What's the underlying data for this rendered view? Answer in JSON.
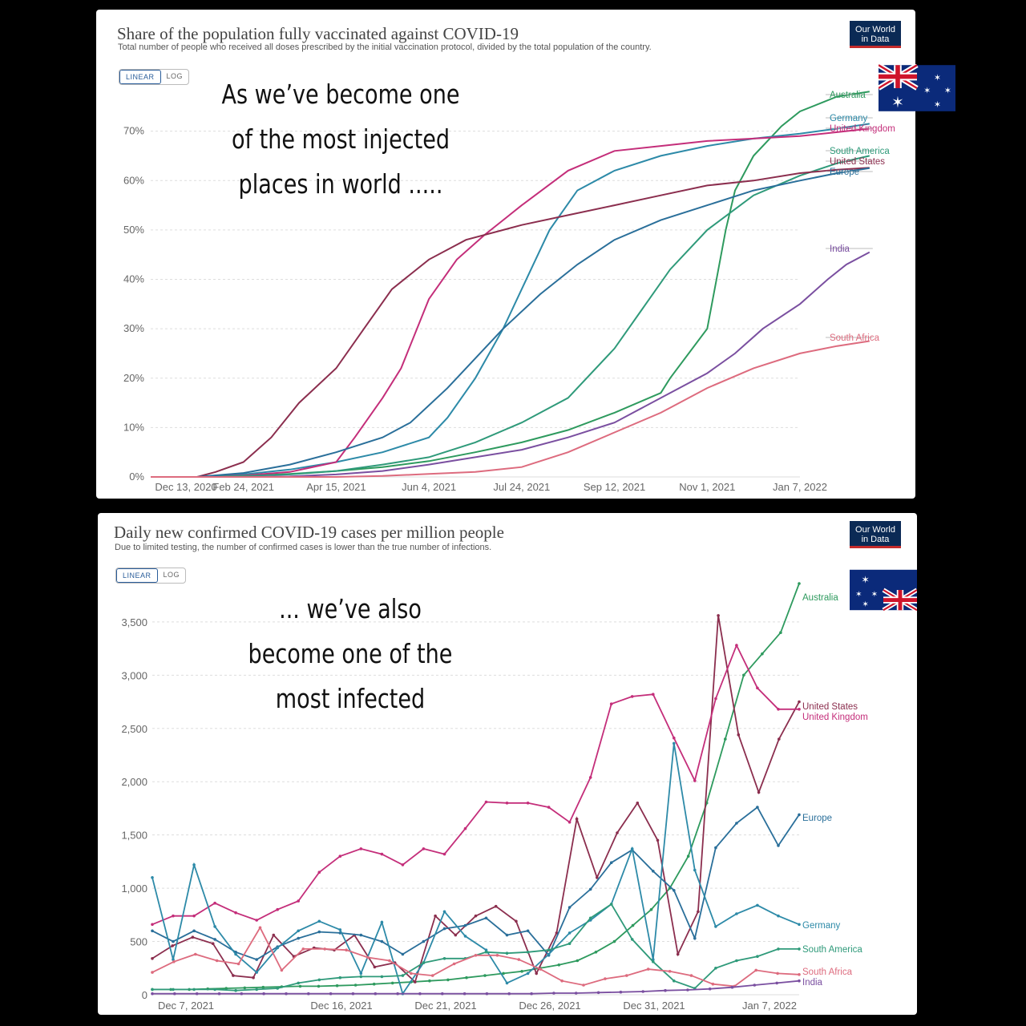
{
  "top_chart": {
    "title": "Share of the population fully vaccinated against COVID-19",
    "subtitle": "Total number of people who received all doses prescribed by the initial vaccination protocol, divided by the total population of the country.",
    "logo_line1": "Our World",
    "logo_line2": "in Data",
    "toggle_linear": "LINEAR",
    "toggle_log": "LOG",
    "overlay_lines": [
      "As we’ve become one",
      "of the most injected",
      "places in world ....."
    ]
  },
  "bottom_chart": {
    "title": "Daily new confirmed COVID-19 cases per million people",
    "subtitle": "Due to limited testing, the number of confirmed cases is lower than the true number of infections.",
    "logo_line1": "Our World",
    "logo_line2": "in Data",
    "toggle_linear": "LINEAR",
    "toggle_log": "LOG",
    "overlay_lines": [
      "... we’ve also",
      "become one of the",
      "most infected"
    ]
  },
  "colors": {
    "australia": "#2e9a5e",
    "germany": "#2d8aa8",
    "united_kingdom": "#c42e7a",
    "south_america": "#2f9a7a",
    "united_states": "#8b2e4e",
    "europe": "#2a6f9a",
    "india": "#7a4fa0",
    "south_africa": "#dd6b7e",
    "grid": "#dddddd",
    "axis_text": "#666666"
  },
  "chart_data": [
    {
      "type": "line",
      "x_ticks": [
        "Dec 13, 2020",
        "Feb 24, 2021",
        "Apr 15, 2021",
        "Jun 4, 2021",
        "Jul 24, 2021",
        "Sep 12, 2021",
        "Nov 1, 2021",
        "Jan 7, 2022"
      ],
      "y_ticks": [
        "0%",
        "10%",
        "20%",
        "30%",
        "40%",
        "50%",
        "60%",
        "70%"
      ],
      "ylim": [
        0,
        80
      ],
      "unit": "%",
      "series": [
        {
          "name": "Australia",
          "color_key": "australia",
          "points": [
            [
              0,
              0
            ],
            [
              0.5,
              0
            ],
            [
              1,
              0.2
            ],
            [
              1.5,
              0.6
            ],
            [
              2,
              1.2
            ],
            [
              2.5,
              2
            ],
            [
              3,
              3.2
            ],
            [
              3.5,
              5
            ],
            [
              4,
              7
            ],
            [
              4.5,
              9.5
            ],
            [
              5,
              13
            ],
            [
              5.5,
              17
            ],
            [
              5.6,
              20
            ],
            [
              6,
              30
            ],
            [
              6.1,
              40
            ],
            [
              6.2,
              50
            ],
            [
              6.3,
              58
            ],
            [
              6.5,
              65
            ],
            [
              6.8,
              71
            ],
            [
              7,
              74
            ],
            [
              7.4,
              77
            ],
            [
              7.75,
              78
            ]
          ]
        },
        {
          "name": "Germany",
          "color_key": "germany",
          "points": [
            [
              0,
              0
            ],
            [
              0.5,
              0
            ],
            [
              1,
              0.5
            ],
            [
              1.5,
              1.5
            ],
            [
              2,
              3
            ],
            [
              2.5,
              5
            ],
            [
              3,
              8
            ],
            [
              3.2,
              12
            ],
            [
              3.5,
              20
            ],
            [
              3.8,
              30
            ],
            [
              4.1,
              42
            ],
            [
              4.3,
              50
            ],
            [
              4.6,
              58
            ],
            [
              5,
              62
            ],
            [
              5.5,
              65
            ],
            [
              6,
              67
            ],
            [
              6.5,
              68.5
            ],
            [
              7,
              69.5
            ],
            [
              7.4,
              70.5
            ],
            [
              7.75,
              71.5
            ]
          ]
        },
        {
          "name": "United Kingdom",
          "color_key": "united_kingdom",
          "points": [
            [
              0,
              0
            ],
            [
              0.5,
              0
            ],
            [
              1,
              0.3
            ],
            [
              1.5,
              1
            ],
            [
              2,
              3
            ],
            [
              2.2,
              8
            ],
            [
              2.5,
              16
            ],
            [
              2.7,
              22
            ],
            [
              3,
              36
            ],
            [
              3.3,
              44
            ],
            [
              3.6,
              49
            ],
            [
              4,
              55
            ],
            [
              4.5,
              62
            ],
            [
              5,
              66
            ],
            [
              5.5,
              67
            ],
            [
              6,
              68
            ],
            [
              6.5,
              68.5
            ],
            [
              7,
              69
            ],
            [
              7.4,
              69.8
            ],
            [
              7.75,
              70.5
            ]
          ]
        },
        {
          "name": "South America",
          "color_key": "south_america",
          "points": [
            [
              0,
              0
            ],
            [
              0.5,
              0
            ],
            [
              1,
              0.2
            ],
            [
              1.5,
              0.5
            ],
            [
              2,
              1.2
            ],
            [
              2.5,
              2.5
            ],
            [
              3,
              4
            ],
            [
              3.5,
              7
            ],
            [
              4,
              11
            ],
            [
              4.5,
              16
            ],
            [
              5,
              26
            ],
            [
              5.3,
              34
            ],
            [
              5.6,
              42
            ],
            [
              6,
              50
            ],
            [
              6.5,
              57
            ],
            [
              7,
              61
            ],
            [
              7.4,
              63.5
            ],
            [
              7.75,
              65
            ]
          ]
        },
        {
          "name": "United States",
          "color_key": "united_states",
          "points": [
            [
              0,
              0
            ],
            [
              0.5,
              0
            ],
            [
              0.7,
              1
            ],
            [
              1,
              3
            ],
            [
              1.3,
              8
            ],
            [
              1.6,
              15
            ],
            [
              2,
              22
            ],
            [
              2.3,
              30
            ],
            [
              2.6,
              38
            ],
            [
              3,
              44
            ],
            [
              3.4,
              48
            ],
            [
              4,
              51
            ],
            [
              4.5,
              53
            ],
            [
              5,
              55
            ],
            [
              5.5,
              57
            ],
            [
              6,
              59
            ],
            [
              6.5,
              60
            ],
            [
              7,
              61.5
            ],
            [
              7.4,
              62.2
            ],
            [
              7.75,
              62.6
            ]
          ]
        },
        {
          "name": "Europe",
          "color_key": "europe",
          "points": [
            [
              0,
              0
            ],
            [
              0.5,
              0
            ],
            [
              1,
              0.8
            ],
            [
              1.5,
              2.5
            ],
            [
              2,
              5
            ],
            [
              2.5,
              8
            ],
            [
              2.8,
              11
            ],
            [
              3.2,
              18
            ],
            [
              3.5,
              24
            ],
            [
              3.8,
              30
            ],
            [
              4.2,
              37
            ],
            [
              4.6,
              43
            ],
            [
              5,
              48
            ],
            [
              5.5,
              52
            ],
            [
              6,
              55
            ],
            [
              6.5,
              58
            ],
            [
              7,
              60
            ],
            [
              7.4,
              61.5
            ],
            [
              7.75,
              62.5
            ]
          ]
        },
        {
          "name": "India",
          "color_key": "india",
          "points": [
            [
              0,
              0
            ],
            [
              1,
              0
            ],
            [
              1.5,
              0.1
            ],
            [
              2,
              0.5
            ],
            [
              2.5,
              1.2
            ],
            [
              3,
              2.5
            ],
            [
              3.5,
              4
            ],
            [
              4,
              5.5
            ],
            [
              4.5,
              8
            ],
            [
              5,
              11
            ],
            [
              5.3,
              14
            ],
            [
              5.6,
              17
            ],
            [
              6,
              21
            ],
            [
              6.3,
              25
            ],
            [
              6.6,
              30
            ],
            [
              7,
              35
            ],
            [
              7.3,
              40
            ],
            [
              7.5,
              43
            ],
            [
              7.75,
              45.5
            ]
          ]
        },
        {
          "name": "South Africa",
          "color_key": "south_africa",
          "points": [
            [
              0,
              0
            ],
            [
              2,
              0
            ],
            [
              2.5,
              0.2
            ],
            [
              3,
              0.6
            ],
            [
              3.5,
              1
            ],
            [
              4,
              2
            ],
            [
              4.5,
              5
            ],
            [
              5,
              9
            ],
            [
              5.5,
              13
            ],
            [
              6,
              18
            ],
            [
              6.5,
              22
            ],
            [
              7,
              25
            ],
            [
              7.4,
              26.5
            ],
            [
              7.75,
              27.5
            ]
          ]
        }
      ]
    },
    {
      "type": "line",
      "x_ticks": [
        "Dec 7, 2021",
        "Dec 16, 2021",
        "Dec 21, 2021",
        "Dec 26, 2021",
        "Dec 31, 2021",
        "Jan 7, 2022"
      ],
      "y_ticks": [
        "0",
        "500",
        "1,000",
        "1,500",
        "2,000",
        "2,500",
        "3,000",
        "3,500"
      ],
      "ylim": [
        0,
        3800
      ],
      "series": [
        {
          "name": "Australia",
          "color_key": "australia",
          "values": [
            50,
            50,
            50,
            55,
            60,
            65,
            70,
            75,
            80,
            80,
            85,
            90,
            100,
            110,
            120,
            130,
            140,
            160,
            180,
            200,
            220,
            250,
            280,
            320,
            400,
            500,
            650,
            800,
            1000,
            1300,
            1800,
            2400,
            3000,
            3200,
            3400,
            3860
          ]
        },
        {
          "name": "United States",
          "color_key": "united_states",
          "values": [
            340,
            460,
            540,
            480,
            180,
            160,
            560,
            360,
            440,
            420,
            560,
            260,
            300,
            120,
            740,
            560,
            740,
            830,
            690,
            200,
            580,
            1650,
            1100,
            1520,
            1800,
            1450,
            380,
            780,
            3560,
            2440,
            1900,
            2400,
            2750
          ]
        },
        {
          "name": "United Kingdom",
          "color_key": "united_kingdom",
          "values": [
            660,
            740,
            740,
            860,
            770,
            700,
            800,
            880,
            1150,
            1300,
            1370,
            1320,
            1220,
            1370,
            1320,
            1560,
            1810,
            1800,
            1800,
            1760,
            1620,
            2040,
            2730,
            2800,
            2820,
            2410,
            2010,
            2780,
            3280,
            2880,
            2680,
            2680
          ]
        },
        {
          "name": "Europe",
          "color_key": "europe",
          "values": [
            600,
            500,
            600,
            520,
            400,
            330,
            450,
            530,
            590,
            580,
            560,
            500,
            380,
            500,
            620,
            650,
            720,
            560,
            600,
            370,
            820,
            990,
            1240,
            1360,
            1160,
            980,
            530,
            1380,
            1610,
            1760,
            1400,
            1690
          ]
        },
        {
          "name": "Germany",
          "color_key": "germany",
          "values": [
            1100,
            330,
            1220,
            640,
            380,
            210,
            440,
            600,
            690,
            610,
            200,
            680,
            10,
            300,
            780,
            550,
            420,
            110,
            200,
            380,
            580,
            700,
            850,
            1370,
            330,
            2360,
            1170,
            640,
            760,
            840,
            740,
            660
          ]
        },
        {
          "name": "South America",
          "color_key": "south_america",
          "values": [
            50,
            50,
            50,
            50,
            40,
            50,
            60,
            110,
            140,
            160,
            170,
            170,
            180,
            300,
            340,
            340,
            400,
            390,
            400,
            420,
            480,
            720,
            850,
            520,
            310,
            130,
            60,
            250,
            320,
            360,
            430,
            430
          ]
        },
        {
          "name": "South Africa",
          "color_key": "south_africa",
          "values": [
            210,
            310,
            380,
            320,
            290,
            630,
            230,
            430,
            430,
            420,
            350,
            320,
            200,
            180,
            290,
            370,
            370,
            330,
            240,
            130,
            90,
            150,
            180,
            240,
            220,
            180,
            100,
            80,
            230,
            200,
            190
          ]
        },
        {
          "name": "India",
          "color_key": "india",
          "values": [
            10,
            10,
            10,
            10,
            10,
            10,
            10,
            10,
            10,
            10,
            10,
            10,
            10,
            10,
            10,
            10,
            10,
            10,
            15,
            15,
            20,
            25,
            30,
            40,
            45,
            55,
            70,
            90,
            110,
            130
          ]
        }
      ]
    }
  ]
}
